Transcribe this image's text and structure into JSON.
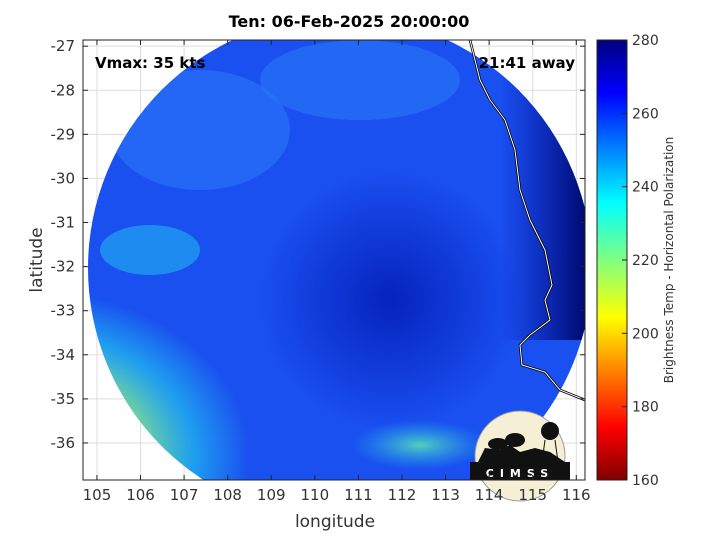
{
  "chart_data": {
    "type": "heatmap",
    "title": "Ten: 06-Feb-2025 20:00:00",
    "xlabel": "longitude",
    "ylabel": "latitude",
    "xlim": [
      104.68,
      116.2
    ],
    "ylim": [
      -36.84,
      -26.86
    ],
    "xticks": [
      "105",
      "106",
      "107",
      "108",
      "109",
      "110",
      "111",
      "112",
      "113",
      "114",
      "115",
      "116"
    ],
    "yticks": [
      "-27",
      "-28",
      "-29",
      "-30",
      "-31",
      "-32",
      "-33",
      "-34",
      "-35",
      "-36"
    ],
    "grid": true,
    "colorbar": {
      "label": "Brightness Temp - Horizontal Polarization",
      "range": [
        160,
        280
      ],
      "ticks": [
        "160",
        "180",
        "200",
        "220",
        "240",
        "260",
        "280"
      ]
    },
    "annotations": {
      "vmax": "Vmax: 35 kts",
      "away": "21:41 away"
    }
  },
  "logo": {
    "text": "CIMSS"
  },
  "colors": {
    "swath_base": "#1a4ff0",
    "cold": "#000a80",
    "warm": "#c8e628"
  }
}
